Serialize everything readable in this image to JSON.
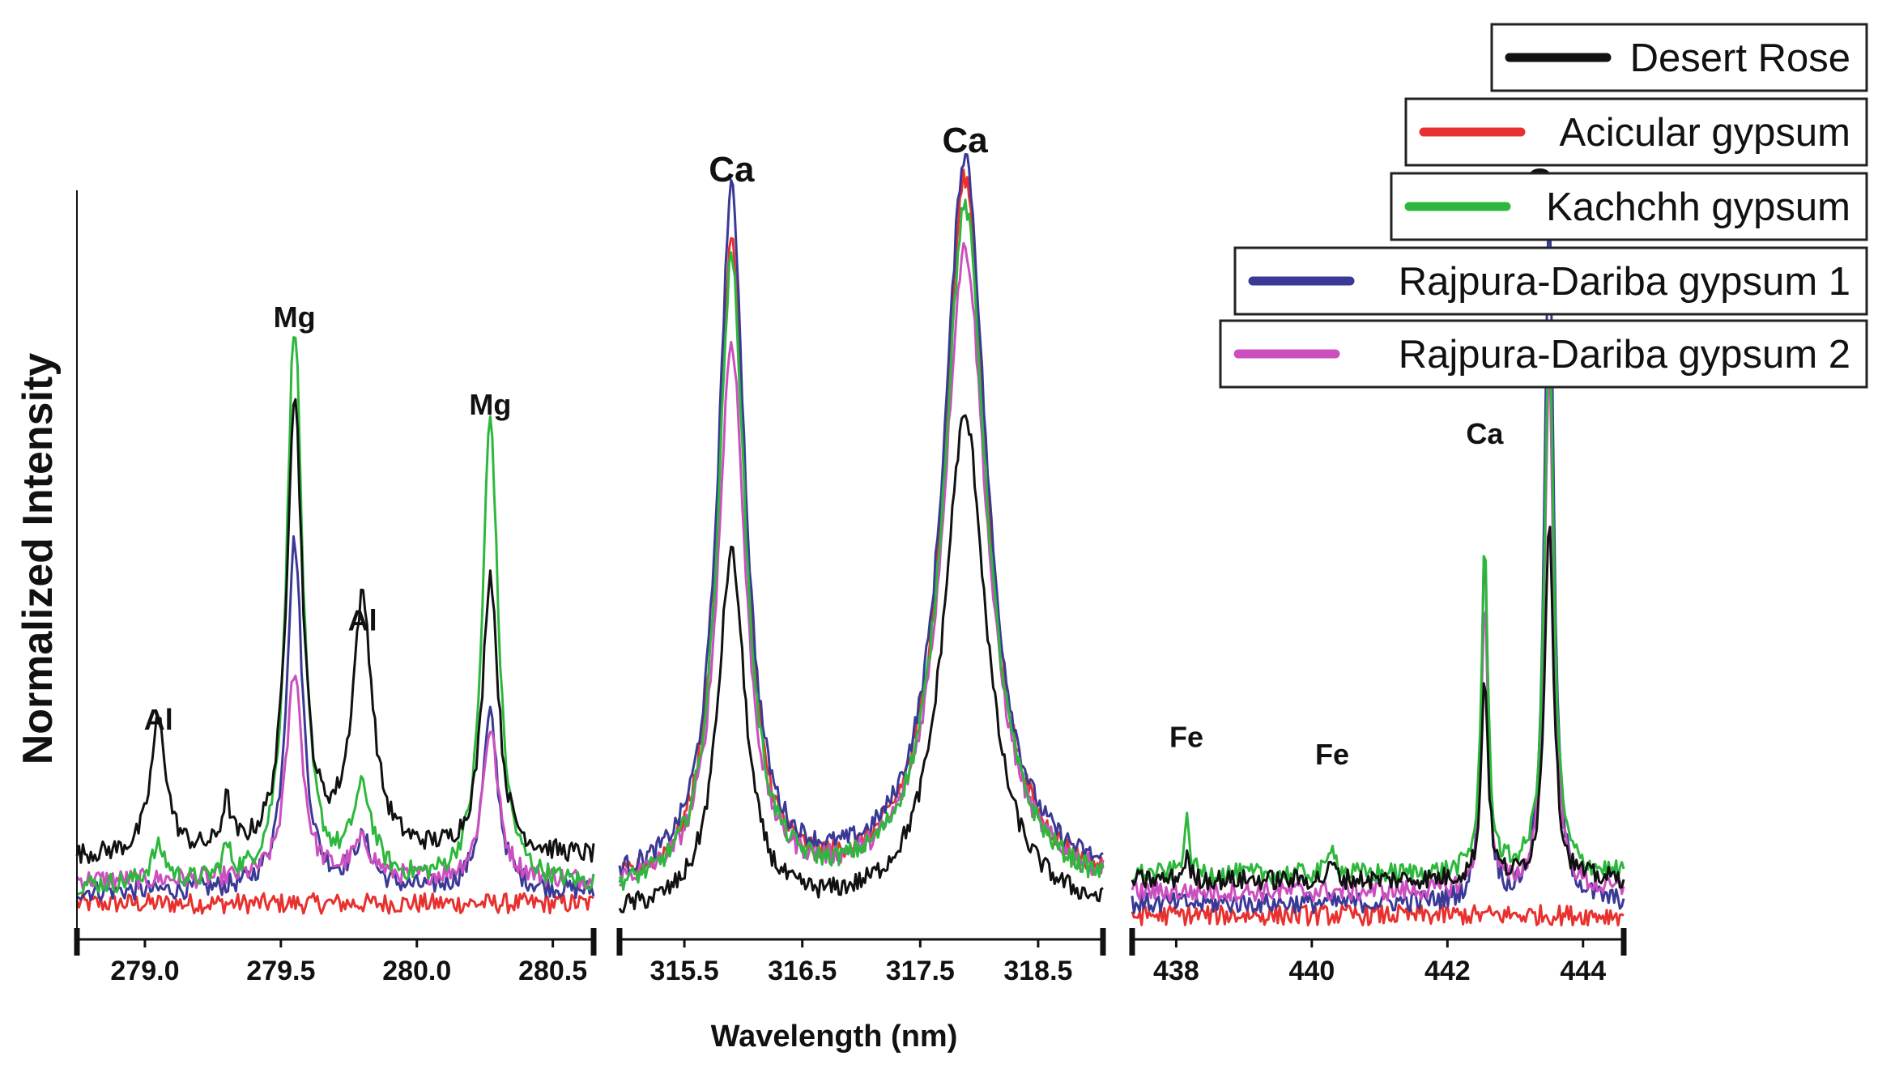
{
  "chart_data": {
    "type": "line",
    "title": "",
    "xlabel": "Wavelength (nm)",
    "ylabel": "Normalized Intensity",
    "legend_position": "top-right",
    "series": [
      {
        "name": "Desert Rose",
        "color": "#111111"
      },
      {
        "name": "Acicular gypsum",
        "color": "#e8312f"
      },
      {
        "name": "Kachchh gypsum",
        "color": "#2db83d"
      },
      {
        "name": "Rajpura-Dariba gypsum 1",
        "color": "#3a3a96"
      },
      {
        "name": "Rajpura-Dariba gypsum 2",
        "color": "#cc4fc0"
      }
    ],
    "panels": [
      {
        "id": "p1",
        "xlim": [
          278.75,
          280.65
        ],
        "ticks": [
          279.0,
          279.5,
          280.0,
          280.5
        ],
        "tick_labels": [
          "279.0",
          "279.5",
          "280.0",
          "280.5"
        ],
        "peaks": [
          {
            "x": 279.05,
            "w": 0.035,
            "amp": [
              0.23,
              0.0,
              0.06,
              0.0,
              0.0
            ],
            "label": "Al",
            "label_y": 0.31
          },
          {
            "x": 279.3,
            "w": 0.02,
            "amp": [
              0.08,
              0.0,
              0.05,
              0.0,
              0.0
            ],
            "label": "",
            "label_y": 0
          },
          {
            "x": 279.55,
            "w": 0.035,
            "amp": [
              0.78,
              0.0,
              0.96,
              0.6,
              0.36
            ],
            "label": "Mg",
            "label_y": 1.0
          },
          {
            "x": 279.8,
            "w": 0.045,
            "amp": [
              0.43,
              0.0,
              0.15,
              0.08,
              0.06
            ],
            "label": "Al",
            "label_y": 0.48
          },
          {
            "x": 280.27,
            "w": 0.035,
            "amp": [
              0.48,
              0.0,
              0.8,
              0.3,
              0.26
            ],
            "label": "Mg",
            "label_y": 0.85
          }
        ],
        "baselines": [
          0.1,
          0.02,
          0.05,
          0.04,
          0.06
        ]
      },
      {
        "id": "p2",
        "xlim": [
          314.95,
          319.05
        ],
        "ticks": [
          315.5,
          316.5,
          317.5,
          318.5
        ],
        "tick_labels": [
          "315.5",
          "316.5",
          "317.5",
          "318.5"
        ],
        "peaks": [
          {
            "x": 315.9,
            "w": 0.14,
            "amp": [
              0.61,
              1.1,
              1.08,
              1.18,
              0.93
            ],
            "label": "Ca",
            "label_y": 1.25
          },
          {
            "x": 317.88,
            "w": 0.22,
            "amp": [
              0.85,
              1.22,
              1.18,
              1.25,
              1.1
            ],
            "label": "Ca",
            "label_y": 1.3
          }
        ],
        "baselines": [
          0.0,
          0.04,
          0.03,
          0.05,
          0.04
        ]
      },
      {
        "id": "p3",
        "xlim": [
          437.35,
          444.6
        ],
        "ticks": [
          438,
          440,
          442,
          444
        ],
        "tick_labels": [
          "438",
          "440",
          "442",
          "444"
        ],
        "peaks": [
          {
            "x": 438.15,
            "w": 0.05,
            "amp": [
              0.04,
              0.0,
              0.09,
              0.0,
              0.0
            ],
            "label": "Fe",
            "label_y": 0.28
          },
          {
            "x": 440.3,
            "w": 0.05,
            "amp": [
              0.03,
              0.0,
              0.06,
              0.0,
              0.0
            ],
            "label": "Fe",
            "label_y": 0.25
          },
          {
            "x": 442.55,
            "w": 0.06,
            "amp": [
              0.35,
              0.0,
              0.55,
              0.6,
              0.5
            ],
            "label": "Ca",
            "label_y": 0.8
          },
          {
            "x": 443.5,
            "w": 0.08,
            "amp": [
              0.62,
              0.0,
              0.95,
              1.2,
              0.9
            ],
            "label": "Ca",
            "label_y": 1.23
          }
        ],
        "baselines": [
          0.06,
          0.0,
          0.07,
          0.02,
          0.04
        ]
      }
    ]
  }
}
